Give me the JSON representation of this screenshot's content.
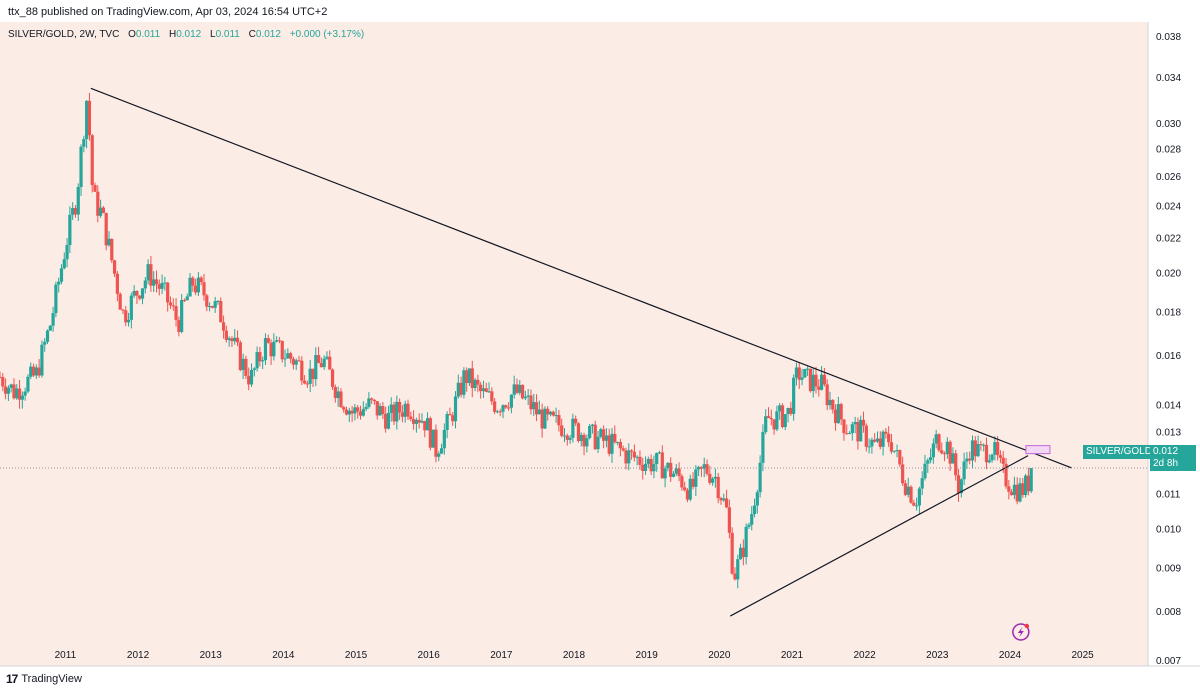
{
  "header": {
    "text": "ttx_88 published on TradingView.com, Apr 03, 2024 16:54 UTC+2"
  },
  "legend": {
    "symbol": "SILVER/GOLD, 2W, TVC",
    "o_label": "O",
    "o_value": "0.011",
    "h_label": "H",
    "h_value": "0.012",
    "l_label": "L",
    "l_value": "0.011",
    "c_label": "C",
    "c_value": "0.012",
    "change": "+0.000 (+3.17%)"
  },
  "price_tag": {
    "name": "SILVER/GOLD",
    "value": "0.012",
    "countdown": "2d 8h"
  },
  "footer": {
    "logo": "17",
    "brand": "TradingView"
  },
  "chart_data": {
    "type": "candlestick",
    "title": "SILVER/GOLD, 2W, TVC",
    "xlabel": "",
    "ylabel": "",
    "y_scale": "log",
    "ylim": [
      0.0069,
      0.0395
    ],
    "xlim": [
      2010.1,
      2025.9
    ],
    "x_ticks": [
      "2011",
      "2012",
      "2013",
      "2014",
      "2015",
      "2016",
      "2017",
      "2018",
      "2019",
      "2020",
      "2021",
      "2022",
      "2023",
      "2024",
      "2025"
    ],
    "y_ticks": [
      "0.007",
      "0.008",
      "0.009",
      "0.010",
      "0.011",
      "0.012",
      "0.013",
      "0.014",
      "0.016",
      "0.018",
      "0.020",
      "0.022",
      "0.024",
      "0.026",
      "0.028",
      "0.030",
      "0.034",
      "0.038"
    ],
    "colors": {
      "up": "#26a69a",
      "down": "#ef5350",
      "background": "#fbece6",
      "trendline": "#131722",
      "marker": "#c266d6"
    },
    "close_path": [
      [
        2010.1,
        0.0151
      ],
      [
        2010.3,
        0.0145
      ],
      [
        2010.6,
        0.0152
      ],
      [
        2010.8,
        0.0175
      ],
      [
        2011.0,
        0.0215
      ],
      [
        2011.15,
        0.0245
      ],
      [
        2011.3,
        0.0325
      ],
      [
        2011.38,
        0.0245
      ],
      [
        2011.5,
        0.0235
      ],
      [
        2011.65,
        0.0205
      ],
      [
        2011.8,
        0.0178
      ],
      [
        2011.95,
        0.0188
      ],
      [
        2012.15,
        0.02
      ],
      [
        2012.35,
        0.019
      ],
      [
        2012.55,
        0.0175
      ],
      [
        2012.75,
        0.0195
      ],
      [
        2012.95,
        0.0188
      ],
      [
        2013.15,
        0.0178
      ],
      [
        2013.35,
        0.0162
      ],
      [
        2013.55,
        0.015
      ],
      [
        2013.75,
        0.0165
      ],
      [
        2013.95,
        0.0162
      ],
      [
        2014.15,
        0.0158
      ],
      [
        2014.35,
        0.0152
      ],
      [
        2014.55,
        0.0158
      ],
      [
        2014.75,
        0.0145
      ],
      [
        2014.95,
        0.0137
      ],
      [
        2015.2,
        0.014
      ],
      [
        2015.45,
        0.0135
      ],
      [
        2015.7,
        0.014
      ],
      [
        2015.95,
        0.0134
      ],
      [
        2016.1,
        0.0124
      ],
      [
        2016.3,
        0.0135
      ],
      [
        2016.5,
        0.0152
      ],
      [
        2016.7,
        0.0145
      ],
      [
        2016.95,
        0.014
      ],
      [
        2017.2,
        0.0145
      ],
      [
        2017.4,
        0.014
      ],
      [
        2017.6,
        0.0134
      ],
      [
        2017.9,
        0.0132
      ],
      [
        2018.2,
        0.0129
      ],
      [
        2018.5,
        0.0126
      ],
      [
        2018.75,
        0.0122
      ],
      [
        2019.0,
        0.012
      ],
      [
        2019.2,
        0.0119
      ],
      [
        2019.45,
        0.0115
      ],
      [
        2019.6,
        0.0111
      ],
      [
        2019.8,
        0.0118
      ],
      [
        2019.95,
        0.0115
      ],
      [
        2020.1,
        0.0105
      ],
      [
        2020.2,
        0.0088
      ],
      [
        2020.3,
        0.0093
      ],
      [
        2020.45,
        0.0105
      ],
      [
        2020.55,
        0.0118
      ],
      [
        2020.65,
        0.0135
      ],
      [
        2020.8,
        0.0135
      ],
      [
        2020.95,
        0.0137
      ],
      [
        2021.08,
        0.0153
      ],
      [
        2021.2,
        0.015
      ],
      [
        2021.4,
        0.0148
      ],
      [
        2021.55,
        0.014
      ],
      [
        2021.75,
        0.0132
      ],
      [
        2021.95,
        0.013
      ],
      [
        2022.15,
        0.0125
      ],
      [
        2022.35,
        0.0128
      ],
      [
        2022.55,
        0.0114
      ],
      [
        2022.7,
        0.0108
      ],
      [
        2022.85,
        0.0118
      ],
      [
        2023.0,
        0.0128
      ],
      [
        2023.15,
        0.0125
      ],
      [
        2023.3,
        0.0112
      ],
      [
        2023.45,
        0.0125
      ],
      [
        2023.6,
        0.0123
      ],
      [
        2023.75,
        0.0125
      ],
      [
        2023.9,
        0.0116
      ],
      [
        2024.05,
        0.0112
      ],
      [
        2024.15,
        0.0111
      ],
      [
        2024.25,
        0.0113
      ],
      [
        2024.3,
        0.012
      ]
    ],
    "trendlines": [
      {
        "from": [
          2011.35,
          0.033
        ],
        "to": [
          2024.85,
          0.0118
        ]
      },
      {
        "from": [
          2020.15,
          0.0079
        ],
        "to": [
          2024.25,
          0.0122
        ]
      }
    ],
    "last_value": 0.012
  }
}
